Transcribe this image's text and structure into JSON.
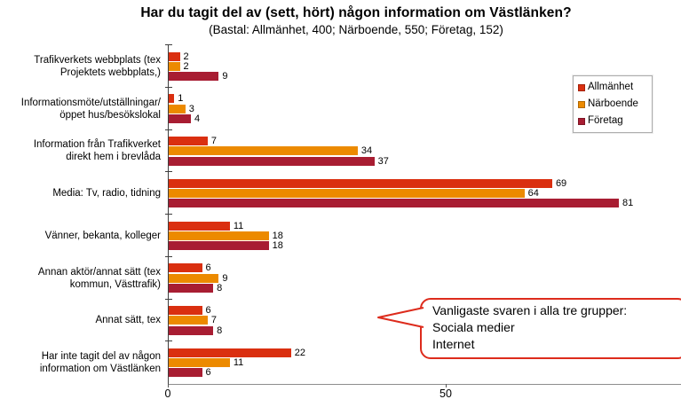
{
  "chart_data": {
    "type": "bar",
    "orientation": "horizontal",
    "title": "Har du tagit del av (sett, hört) någon information om Västlänken?",
    "subtitle": "(Bastal: Allmänhet, 400; Närboende, 550; Företag, 152)",
    "categories": [
      "Trafikverkets webbplats (tex Projektets webbplats,)",
      "Informationsmöte/utställningar/öppet hus/besökslokal",
      "Information från Trafikverket direkt hem i brevlåda",
      "Media: Tv, radio, tidning",
      "Vänner, bekanta, kolleger",
      "Annan aktör/annat sätt (tex kommun, Västtrafik)",
      "Annat sätt, tex",
      "Har inte tagit del av någon information om Västlänken"
    ],
    "category_label_lines": [
      [
        "Trafikverkets webbplats (tex",
        "Projektets webbplats,)"
      ],
      [
        "Informationsmöte/utställningar/",
        "öppet hus/besökslokal"
      ],
      [
        "Information från Trafikverket",
        "direkt hem i brevlåda"
      ],
      [
        "Media: Tv, radio, tidning"
      ],
      [
        "Vänner, bekanta, kolleger"
      ],
      [
        "Annan aktör/annat sätt (tex",
        "kommun, Västtrafik)"
      ],
      [
        "Annat sätt, tex"
      ],
      [
        "Har inte tagit del av någon",
        "information om Västlänken"
      ]
    ],
    "series": [
      {
        "name": "Allmänhet",
        "color": "#da2f10",
        "values": [
          2,
          1,
          7,
          69,
          11,
          6,
          6,
          22
        ]
      },
      {
        "name": "Närboende",
        "color": "#ec8a00",
        "values": [
          2,
          3,
          34,
          64,
          18,
          9,
          7,
          11
        ]
      },
      {
        "name": "Företag",
        "color": "#a81d32",
        "values": [
          9,
          4,
          37,
          81,
          18,
          8,
          8,
          6
        ]
      }
    ],
    "x_ticks": [
      0,
      50
    ],
    "xlim": [
      0,
      92
    ],
    "grid": false,
    "legend": {
      "position": "right-top",
      "entries": [
        {
          "label": "Allmänhet",
          "color": "#da2f10"
        },
        {
          "label": "Närboende",
          "color": "#ec8a00"
        },
        {
          "label": "Företag",
          "color": "#a81d32"
        }
      ]
    },
    "callout": {
      "lines": [
        "Vanligaste svaren i alla tre grupper:",
        "Sociala medier",
        "Internet"
      ]
    }
  }
}
